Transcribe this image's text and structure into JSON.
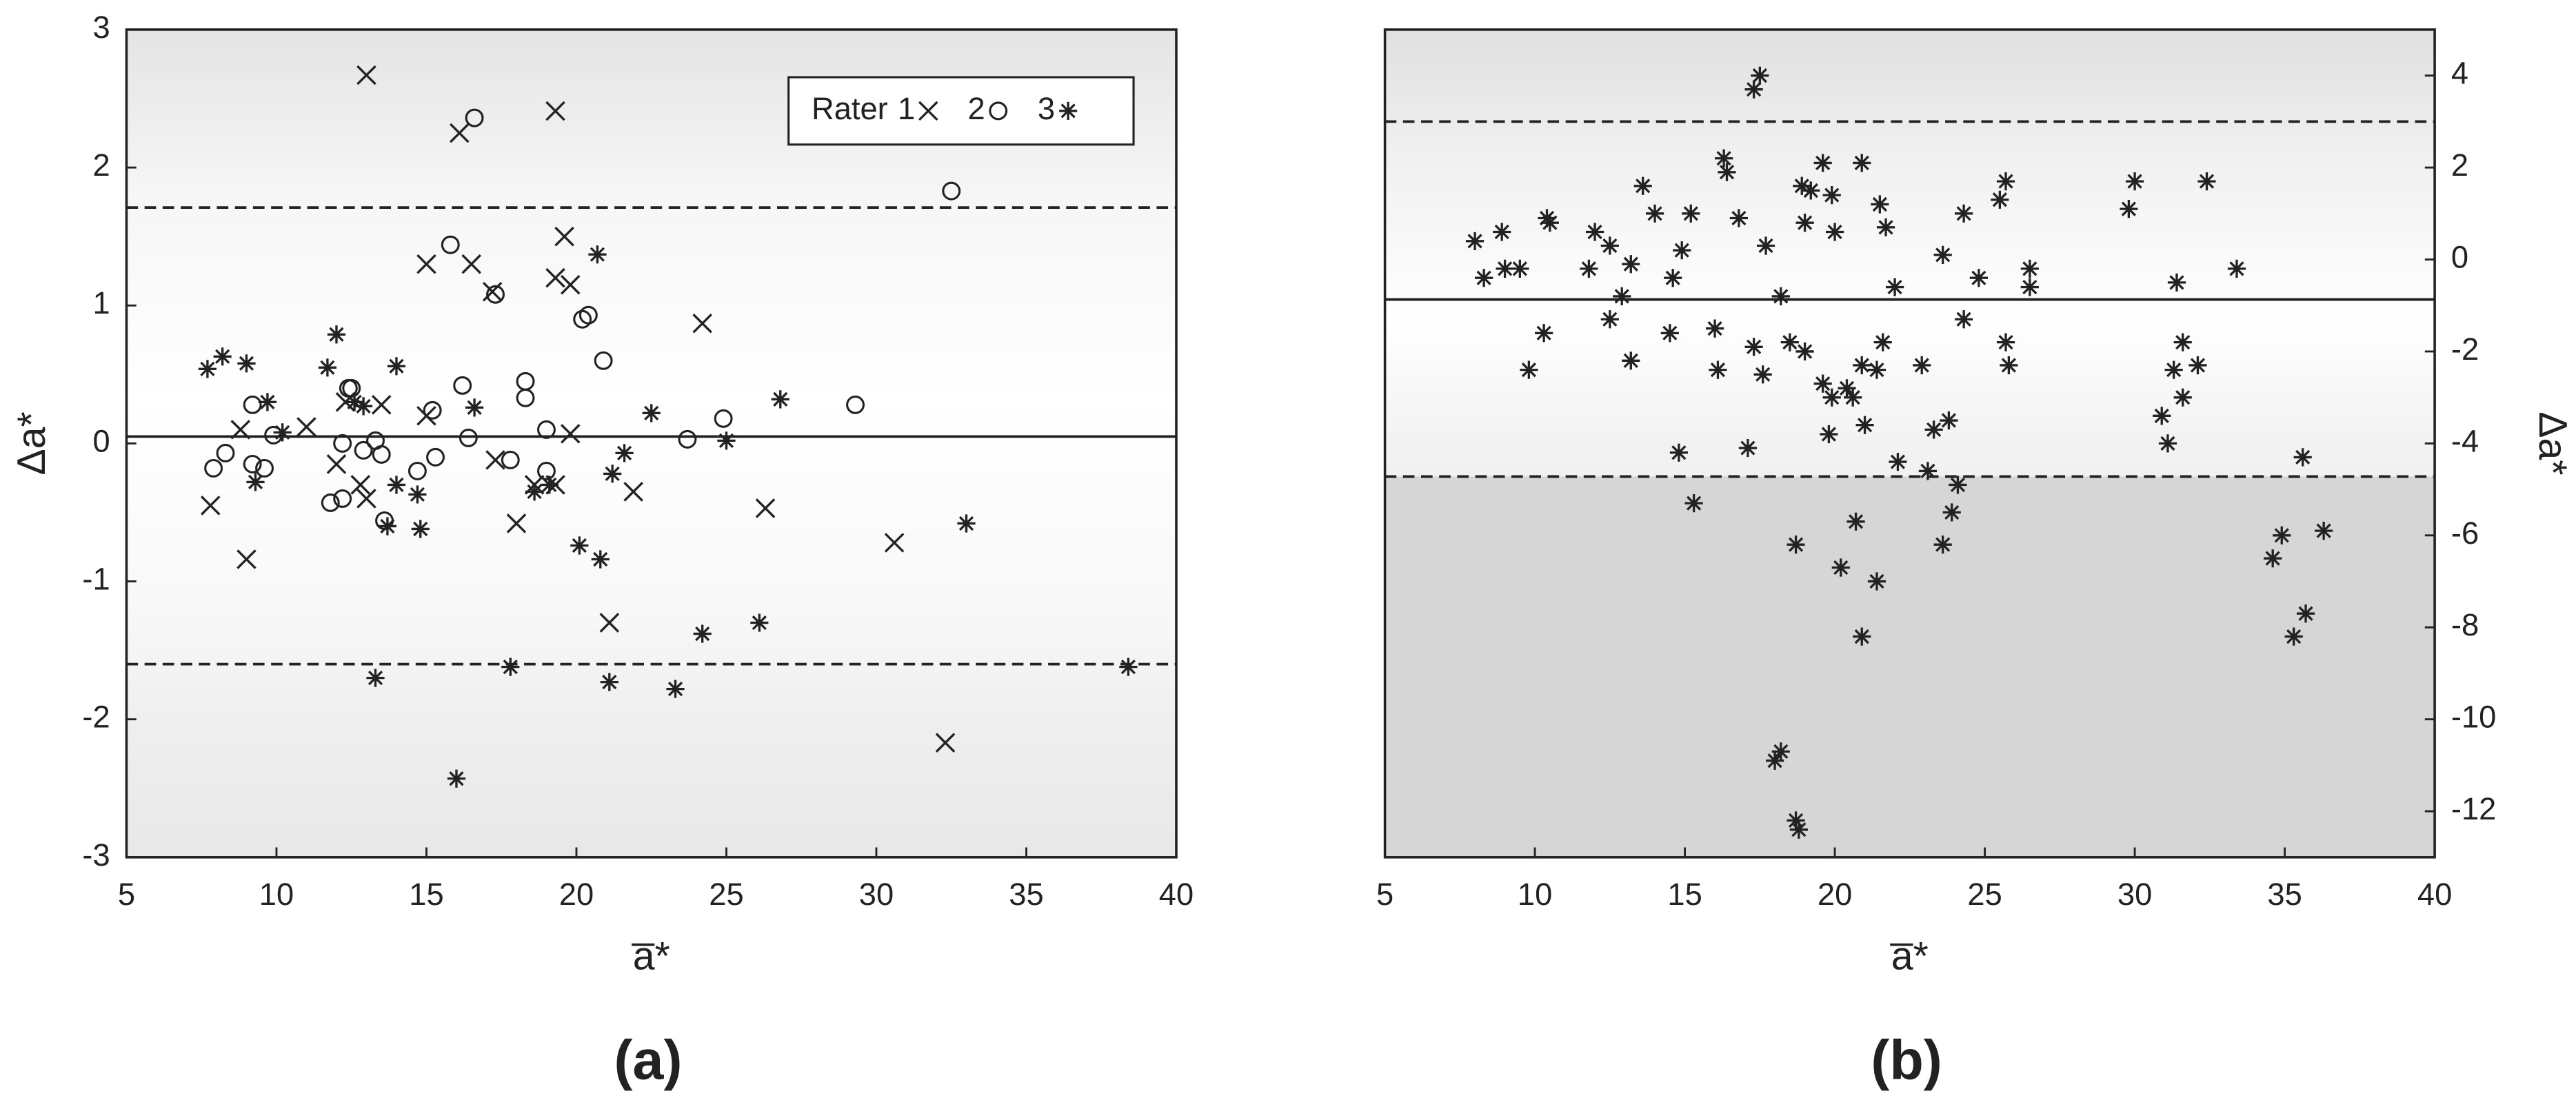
{
  "chart_data": [
    {
      "type": "scatter",
      "panel_label": "(a)",
      "xlabel": "a̅*",
      "ylabel": "Δa*",
      "yaxis_side": "left",
      "xlim": [
        5,
        40
      ],
      "xticks": [
        5,
        10,
        15,
        20,
        25,
        30,
        35,
        40
      ],
      "ylim": [
        -3,
        3
      ],
      "yticks": [
        -3,
        -2,
        -1,
        0,
        1,
        2,
        3
      ],
      "legend_title": "Rater",
      "legend": "upper right",
      "background": "bands",
      "hlines": [
        {
          "value": 1.71,
          "style": "dashed"
        },
        {
          "value": 0.05,
          "style": "solid"
        },
        {
          "value": -1.6,
          "style": "dashed"
        }
      ],
      "series": [
        {
          "name": "1",
          "marker": "x",
          "color": "#222222",
          "x": [
            13.0,
            16.1,
            19.3,
            19.6,
            15.0,
            16.5,
            17.2,
            19.3,
            19.8,
            24.2,
            7.8,
            9.0,
            11.0,
            12.3,
            12.8,
            13.5,
            17.3,
            18.0,
            19.3,
            19.8,
            21.1,
            21.9,
            26.3,
            30.6,
            32.3,
            12.0,
            13.0,
            8.8,
            15.0,
            18.6
          ],
          "values": [
            2.67,
            2.25,
            2.41,
            1.5,
            1.3,
            1.3,
            1.1,
            1.2,
            1.15,
            0.87,
            -0.45,
            -0.84,
            0.12,
            0.3,
            -0.3,
            0.28,
            -0.12,
            -0.58,
            -0.3,
            0.07,
            -1.3,
            -0.35,
            -0.47,
            -0.72,
            -2.17,
            -0.15,
            -0.4,
            0.1,
            0.2,
            -0.3
          ]
        },
        {
          "name": "2",
          "marker": "o",
          "color": "#222222",
          "x": [
            16.6,
            32.5,
            15.8,
            17.3,
            20.2,
            20.4,
            20.9,
            18.3,
            18.3,
            16.2,
            15.2,
            29.3,
            24.9,
            23.7,
            16.4,
            15.3,
            17.8,
            19.0,
            19.0,
            14.7,
            13.6,
            11.8,
            12.2,
            12.5,
            12.4,
            13.3,
            13.5,
            9.2,
            9.2,
            9.6,
            9.9,
            7.9,
            8.3,
            12.9,
            12.2
          ],
          "values": [
            2.36,
            1.83,
            1.44,
            1.08,
            0.9,
            0.93,
            0.6,
            0.45,
            0.33,
            0.42,
            0.24,
            0.28,
            0.18,
            0.03,
            0.04,
            -0.1,
            -0.12,
            -0.2,
            0.1,
            -0.2,
            -0.56,
            -0.43,
            -0.4,
            0.4,
            0.4,
            0.02,
            -0.08,
            0.28,
            -0.15,
            -0.18,
            0.06,
            -0.18,
            -0.07,
            -0.05,
            0.0
          ]
        },
        {
          "name": "3",
          "marker": "*",
          "color": "#222222",
          "x": [
            16.0,
            13.3,
            17.8,
            21.1,
            23.3,
            24.2,
            26.1,
            38.4,
            33.0,
            20.8,
            20.1,
            21.2,
            21.6,
            14.8,
            13.7,
            20.7,
            22.5,
            26.8,
            25.0,
            7.7,
            8.2,
            9.0,
            12.0,
            11.7,
            14.0,
            9.7,
            9.3,
            10.2,
            14.0,
            14.7,
            16.6,
            18.6,
            19.1,
            12.9,
            12.6
          ],
          "values": [
            -2.43,
            -1.7,
            -1.62,
            -1.73,
            -1.78,
            -1.38,
            -1.3,
            -1.62,
            -0.58,
            -0.84,
            -0.74,
            -0.22,
            -0.07,
            -0.62,
            -0.6,
            1.37,
            0.22,
            0.32,
            0.02,
            0.54,
            0.63,
            0.58,
            0.79,
            0.55,
            0.56,
            0.3,
            -0.28,
            0.08,
            -0.3,
            -0.37,
            0.26,
            -0.35,
            -0.3,
            0.27,
            0.3
          ]
        }
      ]
    },
    {
      "type": "scatter",
      "panel_label": "(b)",
      "xlabel": "a̅*",
      "ylabel": "Δa*",
      "yaxis_side": "right",
      "xlim": [
        5,
        40
      ],
      "xticks": [
        5,
        10,
        15,
        20,
        25,
        30,
        35,
        40
      ],
      "ylim": [
        -13,
        5
      ],
      "yticks": [
        4,
        2,
        0,
        -2,
        -4,
        -6,
        -8,
        -10,
        -12
      ],
      "background": "shaded-below-lower-limit",
      "hlines": [
        {
          "value": 3.0,
          "style": "dashed"
        },
        {
          "value": -0.87,
          "style": "solid"
        },
        {
          "value": -4.72,
          "style": "dashed"
        }
      ],
      "series": [
        {
          "marker": "*",
          "color": "#222222",
          "x": [
            17.5,
            17.3,
            16.3,
            16.4,
            18.9,
            19.6,
            20.9,
            19.2,
            19.9,
            25.7,
            25.5,
            30.0,
            32.4,
            29.8,
            13.6,
            14.0,
            15.2,
            10.4,
            10.5,
            8.0,
            8.9,
            9.0,
            9.5,
            8.3,
            12.0,
            12.5,
            11.8,
            12.9,
            13.2,
            14.6,
            14.9,
            16.8,
            17.7,
            18.2,
            19.0,
            20.0,
            21.5,
            21.7,
            22.0,
            23.6,
            24.3,
            24.8,
            26.5,
            26.5,
            31.4,
            33.4,
            10.3,
            9.8,
            12.5,
            13.2,
            14.5,
            16.0,
            16.1,
            17.3,
            17.6,
            18.5,
            19.0,
            19.6,
            19.9,
            20.4,
            20.9,
            21.0,
            21.4,
            21.6,
            22.9,
            23.3,
            23.8,
            24.3,
            25.7,
            25.8,
            31.6,
            31.3,
            31.6,
            32.1,
            30.9,
            31.1,
            17.1,
            14.8,
            15.3,
            22.1,
            23.1,
            24.1,
            23.9,
            20.7,
            18.7,
            20.2,
            21.4,
            23.6,
            20.9,
            18.0,
            18.2,
            18.7,
            18.8,
            35.6,
            34.9,
            34.6,
            35.7,
            35.3,
            36.3,
            19.8,
            20.6
          ],
          "values": [
            4.0,
            3.7,
            2.2,
            1.9,
            1.6,
            2.1,
            2.1,
            1.5,
            1.4,
            1.7,
            1.3,
            1.7,
            1.7,
            1.1,
            1.6,
            1.0,
            1.0,
            0.9,
            0.8,
            0.4,
            0.6,
            -0.2,
            -0.2,
            -0.4,
            0.6,
            0.3,
            -0.2,
            -0.8,
            -0.1,
            -0.4,
            0.2,
            0.9,
            0.3,
            -0.8,
            0.8,
            0.6,
            1.2,
            0.7,
            -0.6,
            0.1,
            1.0,
            -0.4,
            -0.2,
            -0.6,
            -0.5,
            -0.2,
            -1.6,
            -2.4,
            -1.3,
            -2.2,
            -1.6,
            -1.5,
            -2.4,
            -1.9,
            -2.5,
            -1.8,
            -2.0,
            -2.7,
            -3.0,
            -2.8,
            -2.3,
            -3.6,
            -2.4,
            -1.8,
            -2.3,
            -3.7,
            -3.5,
            -1.3,
            -1.8,
            -2.3,
            -1.8,
            -2.4,
            -3.0,
            -2.3,
            -3.4,
            -4.0,
            -4.1,
            -4.2,
            -5.3,
            -4.4,
            -4.6,
            -4.9,
            -5.5,
            -5.7,
            -6.2,
            -6.7,
            -7.0,
            -6.2,
            -8.2,
            -10.9,
            -10.7,
            -12.2,
            -12.4,
            -4.3,
            -6.0,
            -6.5,
            -7.7,
            -8.2,
            -5.9,
            -3.8,
            -3.0
          ]
        }
      ]
    }
  ]
}
